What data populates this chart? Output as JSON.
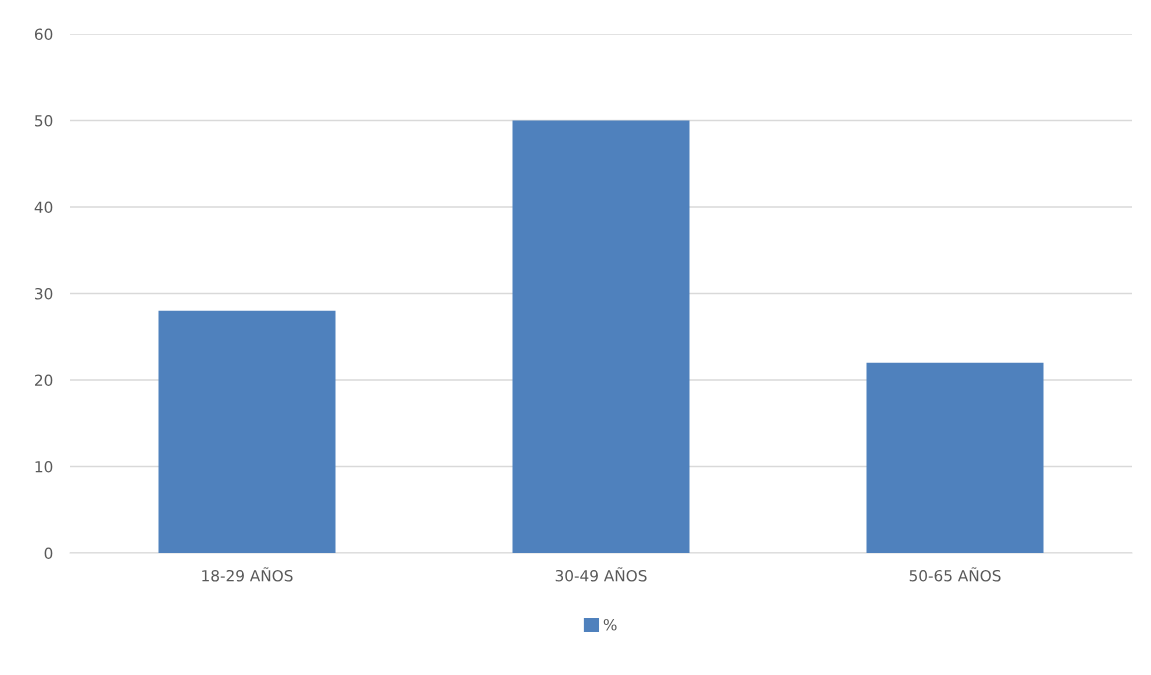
{
  "chart_data": {
    "type": "bar",
    "categories": [
      "18-29 AÑOS",
      "30-49 AÑOS",
      "50-65 AÑOS"
    ],
    "series": [
      {
        "name": "%",
        "color": "#4f81bd",
        "values": [
          28,
          50,
          22
        ]
      }
    ],
    "ylim": [
      0,
      60
    ],
    "yticks": [
      0,
      10,
      20,
      30,
      40,
      50,
      60
    ],
    "grid": "y",
    "legend": "bottom"
  }
}
